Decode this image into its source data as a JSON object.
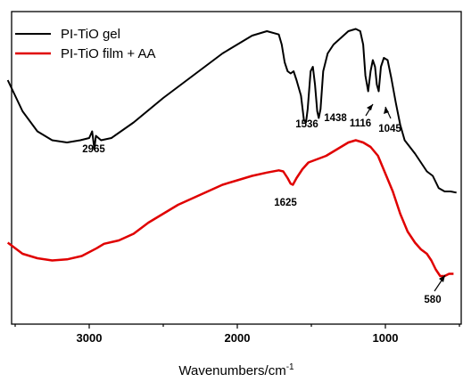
{
  "chart_data": {
    "type": "line",
    "xlabel": "Wavenumbers/cm",
    "xlabel_superscript": "-1",
    "ylabel": "",
    "xlim": [
      3550,
      520
    ],
    "x_reversed": true,
    "xticks": [
      3000,
      2000,
      1000
    ],
    "x_tick_labels": [
      "3000",
      "2000",
      "1000"
    ],
    "y_ticks_visible": false,
    "grid": false,
    "legend_position": "top-left",
    "series": [
      {
        "name": "PI-TiO gel",
        "color": "#000000",
        "points": [
          [
            3550,
            0.54
          ],
          [
            3450,
            0.4
          ],
          [
            3350,
            0.31
          ],
          [
            3250,
            0.27
          ],
          [
            3150,
            0.26
          ],
          [
            3060,
            0.27
          ],
          [
            3000,
            0.28
          ],
          [
            2980,
            0.31
          ],
          [
            2965,
            0.23
          ],
          [
            2955,
            0.29
          ],
          [
            2920,
            0.27
          ],
          [
            2850,
            0.28
          ],
          [
            2700,
            0.35
          ],
          [
            2500,
            0.46
          ],
          [
            2300,
            0.56
          ],
          [
            2100,
            0.66
          ],
          [
            1900,
            0.74
          ],
          [
            1800,
            0.76
          ],
          [
            1720,
            0.745
          ],
          [
            1700,
            0.7
          ],
          [
            1680,
            0.62
          ],
          [
            1660,
            0.58
          ],
          [
            1640,
            0.57
          ],
          [
            1620,
            0.58
          ],
          [
            1600,
            0.54
          ],
          [
            1570,
            0.47
          ],
          [
            1550,
            0.36
          ],
          [
            1536,
            0.35
          ],
          [
            1525,
            0.41
          ],
          [
            1505,
            0.58
          ],
          [
            1490,
            0.6
          ],
          [
            1475,
            0.52
          ],
          [
            1460,
            0.4
          ],
          [
            1450,
            0.37
          ],
          [
            1438,
            0.41
          ],
          [
            1420,
            0.58
          ],
          [
            1390,
            0.66
          ],
          [
            1350,
            0.7
          ],
          [
            1300,
            0.73
          ],
          [
            1250,
            0.76
          ],
          [
            1200,
            0.77
          ],
          [
            1170,
            0.76
          ],
          [
            1150,
            0.7
          ],
          [
            1135,
            0.56
          ],
          [
            1116,
            0.49
          ],
          [
            1100,
            0.58
          ],
          [
            1085,
            0.63
          ],
          [
            1070,
            0.6
          ],
          [
            1058,
            0.52
          ],
          [
            1045,
            0.49
          ],
          [
            1030,
            0.6
          ],
          [
            1010,
            0.64
          ],
          [
            985,
            0.63
          ],
          [
            960,
            0.55
          ],
          [
            930,
            0.44
          ],
          [
            900,
            0.34
          ],
          [
            870,
            0.27
          ],
          [
            800,
            0.21
          ],
          [
            720,
            0.13
          ],
          [
            680,
            0.11
          ],
          [
            640,
            0.055
          ],
          [
            600,
            0.04
          ],
          [
            560,
            0.04
          ],
          [
            520,
            0.035
          ]
        ]
      },
      {
        "name": "PI-TiO film + AA",
        "color": "#e00000",
        "points": [
          [
            3550,
            -0.19
          ],
          [
            3450,
            -0.24
          ],
          [
            3350,
            -0.26
          ],
          [
            3250,
            -0.27
          ],
          [
            3150,
            -0.265
          ],
          [
            3050,
            -0.25
          ],
          [
            2950,
            -0.215
          ],
          [
            2900,
            -0.195
          ],
          [
            2800,
            -0.18
          ],
          [
            2700,
            -0.15
          ],
          [
            2600,
            -0.1
          ],
          [
            2500,
            -0.06
          ],
          [
            2400,
            -0.02
          ],
          [
            2300,
            0.01
          ],
          [
            2200,
            0.04
          ],
          [
            2100,
            0.07
          ],
          [
            2000,
            0.09
          ],
          [
            1900,
            0.11
          ],
          [
            1800,
            0.125
          ],
          [
            1720,
            0.135
          ],
          [
            1690,
            0.13
          ],
          [
            1660,
            0.1
          ],
          [
            1640,
            0.075
          ],
          [
            1625,
            0.07
          ],
          [
            1600,
            0.1
          ],
          [
            1560,
            0.14
          ],
          [
            1520,
            0.17
          ],
          [
            1480,
            0.18
          ],
          [
            1440,
            0.19
          ],
          [
            1400,
            0.2
          ],
          [
            1350,
            0.22
          ],
          [
            1300,
            0.24
          ],
          [
            1250,
            0.26
          ],
          [
            1200,
            0.27
          ],
          [
            1150,
            0.26
          ],
          [
            1100,
            0.24
          ],
          [
            1050,
            0.2
          ],
          [
            1000,
            0.12
          ],
          [
            950,
            0.04
          ],
          [
            900,
            -0.06
          ],
          [
            850,
            -0.14
          ],
          [
            800,
            -0.19
          ],
          [
            760,
            -0.22
          ],
          [
            720,
            -0.24
          ],
          [
            690,
            -0.27
          ],
          [
            660,
            -0.31
          ],
          [
            630,
            -0.34
          ],
          [
            600,
            -0.34
          ],
          [
            570,
            -0.33
          ],
          [
            540,
            -0.33
          ]
        ]
      }
    ],
    "annotations": [
      {
        "text": "2965",
        "x": 2965
      },
      {
        "text": "1536",
        "x": 1536
      },
      {
        "text": "1438",
        "x": 1438
      },
      {
        "text": "1116",
        "x": 1116
      },
      {
        "text": "1045",
        "x": 1045
      },
      {
        "text": "1625",
        "x": 1625
      },
      {
        "text": "580",
        "x": 580
      }
    ]
  }
}
